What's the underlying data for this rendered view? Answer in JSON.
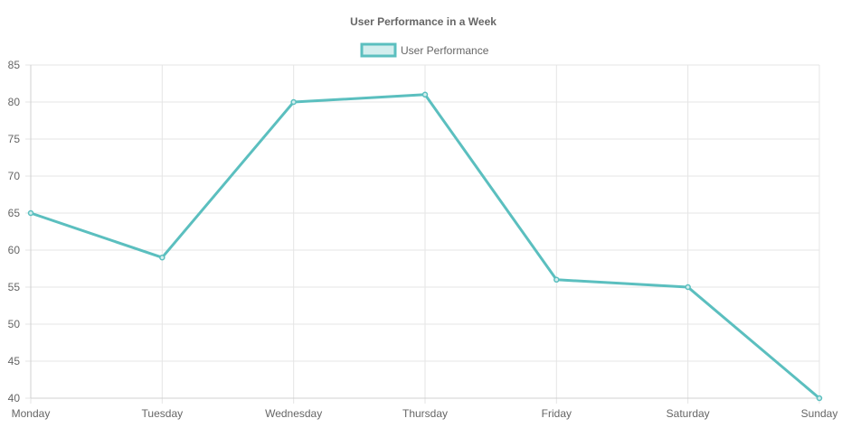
{
  "chart_data": {
    "type": "line",
    "title": "User Performance in a Week",
    "categories": [
      "Monday",
      "Tuesday",
      "Wednesday",
      "Thursday",
      "Friday",
      "Saturday",
      "Sunday"
    ],
    "series": [
      {
        "name": "User Performance",
        "values": [
          65,
          59,
          80,
          81,
          56,
          55,
          40
        ]
      }
    ],
    "ylim": [
      40,
      85
    ],
    "yticks": [
      85,
      80,
      75,
      70,
      65,
      60,
      55,
      50,
      45,
      40
    ],
    "xlabel": "",
    "ylabel": "",
    "grid": true,
    "legend": "top-center",
    "colors": {
      "line": "#5bbfbf",
      "fill": "#d3eeee",
      "point": "#5bbfbf"
    }
  }
}
